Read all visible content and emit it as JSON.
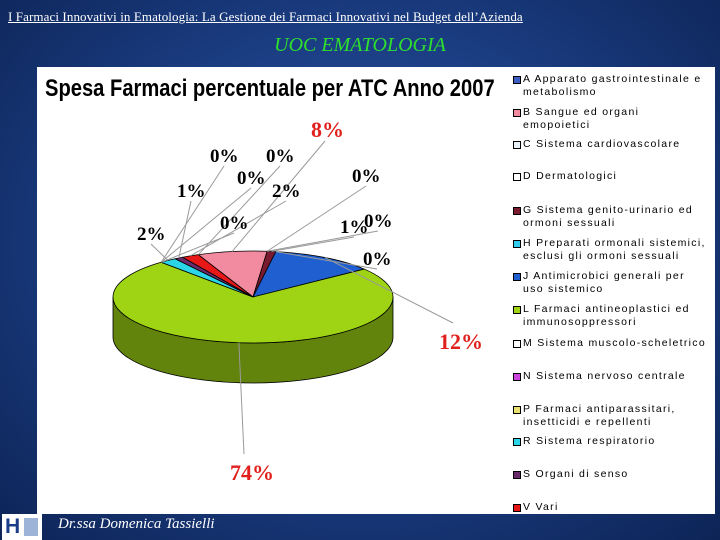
{
  "header": {
    "title": "I Farmaci Innovativi in Ematologia: La Gestione dei Farmaci Innovativi nel Budget dell’Azienda",
    "subtitle": "UOC EMATOLOGIA"
  },
  "footer": {
    "author": "Dr.ssa Domenica Tassielli"
  },
  "colors": {
    "background": "#1c3f86",
    "subtitle": "#2ee02e",
    "percent_red": "#e0201c"
  },
  "chart_data": {
    "type": "pie",
    "title": "Spesa Farmaci percentuale per ATC Anno 2007",
    "legend_position": "right",
    "slices": [
      {
        "name": "A Apparato gastrointestinale e metabolismo",
        "label": "0%",
        "value": 0,
        "color": "#3d5fc4"
      },
      {
        "name": "B Sangue ed organi emopoietici",
        "label": "8%",
        "value": 8,
        "color": "#f28aa0"
      },
      {
        "name": "C Sistema cardiovascolare",
        "label": "0%",
        "value": 0,
        "color": "#e8f0f8"
      },
      {
        "name": "D Dermatologici",
        "label": "0%",
        "value": 0,
        "color": "#ffffff"
      },
      {
        "name": "G Sistema genito-urinario ed ormoni sessuali",
        "label": "1%",
        "value": 1,
        "color": "#7a1a2e"
      },
      {
        "name": "H Preparati ormonali sistemici, esclusi gli ormoni sessuali",
        "label": "0%",
        "value": 0,
        "color": "#33ccee"
      },
      {
        "name": "J Antimicrobici generali per uso sistemico",
        "label": "12%",
        "value": 12,
        "color": "#1f5fd0"
      },
      {
        "name": "L Farmaci antineoplastici ed immunosoppressori",
        "label": "74%",
        "value": 74,
        "color": "#9ed414"
      },
      {
        "name": "M Sistema muscolo-scheletrico",
        "label": "0%",
        "value": 0,
        "color": "#ffffff"
      },
      {
        "name": "N Sistema nervoso centrale",
        "label": "0%",
        "value": 0,
        "color": "#cc44dd"
      },
      {
        "name": "P Farmaci antiparassitari, insetticidi e repellenti",
        "label": "0%",
        "value": 0,
        "color": "#e8e070"
      },
      {
        "name": "R Sistema respiratorio",
        "label": "2%",
        "value": 2,
        "color": "#2ad6e8"
      },
      {
        "name": "S Organi di senso",
        "label": "1%",
        "value": 1,
        "color": "#6a2a6a"
      },
      {
        "name": "V Vari",
        "label": "2%",
        "value": 2,
        "color": "#e81818"
      }
    ],
    "legend": [
      {
        "text": "A Apparato gastrointestinale e metabolismo",
        "color": "#3d5fc4"
      },
      {
        "text": "B Sangue ed organi emopoietici",
        "color": "#f28aa0"
      },
      {
        "text": "C Sistema cardiovascolare",
        "color": "#e8f0f8"
      },
      {
        "text": "D Dermatologici",
        "color": "#ffffff"
      },
      {
        "text": "G Sistema genito-urinario ed ormoni sessuali",
        "color": "#7a1a2e"
      },
      {
        "text": "H Preparati ormonali sistemici, esclusi gli ormoni sessuali",
        "color": "#33ccee"
      },
      {
        "text": "J Antimicrobici generali per uso sistemico",
        "color": "#1f5fd0"
      },
      {
        "text": "L Farmaci antineoplastici ed immunosoppressori",
        "color": "#9ed414"
      },
      {
        "text": "M Sistema muscolo-scheletrico",
        "color": "#ffffff"
      },
      {
        "text": "N Sistema nervoso centrale",
        "color": "#cc44dd"
      },
      {
        "text": "P Farmaci antiparassitari, insetticidi e repellenti",
        "color": "#e8e070"
      },
      {
        "text": "R Sistema respiratorio",
        "color": "#2ad6e8"
      },
      {
        "text": "S Organi di senso",
        "color": "#6a2a6a"
      },
      {
        "text": "V Vari",
        "color": "#e81818"
      }
    ]
  }
}
